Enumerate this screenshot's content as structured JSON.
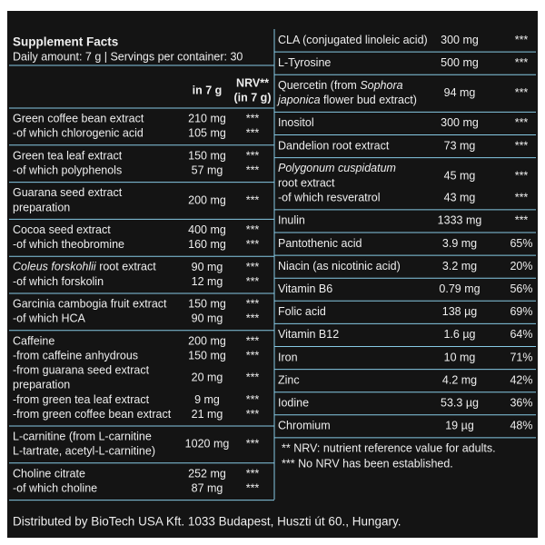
{
  "header": {
    "title": "Supplement Facts",
    "subtitle": "Daily amount: 7 g | Servings per container: 30",
    "amount_heading": "in 7 g",
    "nrv_heading": [
      "NRV**",
      "(in 7 g)"
    ]
  },
  "left_groups": [
    {
      "items": [
        {
          "name": [
            "Green coffee bean extract"
          ],
          "amount": "210 mg",
          "nrv": "***"
        },
        {
          "name": [
            "-of which chlorogenic acid"
          ],
          "amount": "105 mg",
          "nrv": "***"
        }
      ]
    },
    {
      "items": [
        {
          "name": [
            "Green tea leaf extract"
          ],
          "amount": "150 mg",
          "nrv": "***"
        },
        {
          "name": [
            "-of which polyphenols"
          ],
          "amount": "57 mg",
          "nrv": "***"
        }
      ]
    },
    {
      "items": [
        {
          "name": [
            "Guarana seed extract",
            "preparation"
          ],
          "amount": "200 mg",
          "nrv": "***"
        }
      ]
    },
    {
      "items": [
        {
          "name": [
            "Cocoa seed extract"
          ],
          "amount": "400 mg",
          "nrv": "***"
        },
        {
          "name": [
            "-of which theobromine"
          ],
          "amount": "160 mg",
          "nrv": "***"
        }
      ]
    },
    {
      "items": [
        {
          "name": [
            [
              {
                "text": "Coleus forskohlii",
                "italic": true
              },
              {
                "text": " root extract"
              }
            ]
          ],
          "amount": "90 mg",
          "nrv": "***"
        },
        {
          "name": [
            "-of which forskolin"
          ],
          "amount": "12 mg",
          "nrv": "***"
        }
      ]
    },
    {
      "items": [
        {
          "name": [
            "Garcinia cambogia fruit extract"
          ],
          "amount": "150 mg",
          "nrv": "***"
        },
        {
          "name": [
            "-of which HCA"
          ],
          "amount": "90 mg",
          "nrv": "***"
        }
      ]
    },
    {
      "items": [
        {
          "name": [
            "Caffeine"
          ],
          "amount": "200 mg",
          "nrv": "***"
        },
        {
          "name": [
            "-from caffeine anhydrous"
          ],
          "amount": "150 mg",
          "nrv": "***"
        },
        {
          "name": [
            "-from guarana seed extract",
            "preparation"
          ],
          "amount": "20 mg",
          "nrv": "***"
        },
        {
          "name": [
            "-from green tea leaf extract"
          ],
          "amount": "9 mg",
          "nrv": "***"
        },
        {
          "name": [
            "-from green coffee bean extract"
          ],
          "amount": "21 mg",
          "nrv": "***"
        }
      ]
    },
    {
      "items": [
        {
          "name": [
            "L-carnitine (from L-carnitine",
            "L-tartrate, acetyl-L-carnitine)"
          ],
          "amount": "1020 mg",
          "nrv": "***"
        }
      ]
    },
    {
      "items": [
        {
          "name": [
            "Choline citrate"
          ],
          "amount": "252 mg",
          "nrv": "***"
        },
        {
          "name": [
            "-of which choline"
          ],
          "amount": "87 mg",
          "nrv": "***"
        }
      ]
    }
  ],
  "right_groups": [
    {
      "items": [
        {
          "name": [
            "CLA (conjugated linoleic acid)"
          ],
          "amount": "300 mg",
          "nrv": "***"
        }
      ]
    },
    {
      "items": [
        {
          "name": [
            "L-Tyrosine"
          ],
          "amount": "500 mg",
          "nrv": "***"
        }
      ]
    },
    {
      "items": [
        {
          "name": [
            [
              {
                "text": "Quercetin (from "
              },
              {
                "text": "Sophora",
                "italic": true
              }
            ],
            [
              {
                "text": "japonica",
                "italic": true
              },
              {
                "text": " flower bud extract)"
              }
            ]
          ],
          "amount": "94 mg",
          "nrv": "***"
        }
      ]
    },
    {
      "items": [
        {
          "name": [
            "Inositol"
          ],
          "amount": "300 mg",
          "nrv": "***"
        }
      ]
    },
    {
      "items": [
        {
          "name": [
            "Dandelion root extract"
          ],
          "amount": "73 mg",
          "nrv": "***"
        }
      ]
    },
    {
      "items": [
        {
          "name": [
            [
              {
                "text": "Polygonum cuspidatum",
                "italic": true
              }
            ],
            "root extract"
          ],
          "amount": "45 mg",
          "nrv": "***"
        },
        {
          "name": [
            "-of which resveratrol"
          ],
          "amount": "43 mg",
          "nrv": "***"
        }
      ]
    },
    {
      "items": [
        {
          "name": [
            "Inulin"
          ],
          "amount": "1333 mg",
          "nrv": "***"
        }
      ]
    },
    {
      "items": [
        {
          "name": [
            "Pantothenic acid"
          ],
          "amount": "3.9 mg",
          "nrv": "65%"
        }
      ]
    },
    {
      "items": [
        {
          "name": [
            "Niacin (as nicotinic acid)"
          ],
          "amount": "3.2 mg",
          "nrv": "20%"
        }
      ]
    },
    {
      "items": [
        {
          "name": [
            "Vitamin B6"
          ],
          "amount": "0.79 mg",
          "nrv": "56%"
        }
      ]
    },
    {
      "items": [
        {
          "name": [
            "Folic acid"
          ],
          "amount": "138 µg",
          "nrv": "69%"
        }
      ]
    },
    {
      "items": [
        {
          "name": [
            "Vitamin B12"
          ],
          "amount": "1.6 µg",
          "nrv": "64%"
        }
      ]
    },
    {
      "items": [
        {
          "name": [
            "Iron"
          ],
          "amount": "10 mg",
          "nrv": "71%"
        }
      ]
    },
    {
      "items": [
        {
          "name": [
            "Zinc"
          ],
          "amount": "4.2 mg",
          "nrv": "42%"
        }
      ]
    },
    {
      "items": [
        {
          "name": [
            "Iodine"
          ],
          "amount": "53.3 µg",
          "nrv": "36%"
        }
      ]
    },
    {
      "items": [
        {
          "name": [
            "Chromium"
          ],
          "amount": "19 µg",
          "nrv": "48%"
        }
      ]
    }
  ],
  "notes": [
    "** NRV: nutrient reference value for adults.",
    "*** No NRV has been established."
  ],
  "footer": "Distributed by BioTech USA Kft. 1033 Budapest, Huszti út 60., Hungary."
}
